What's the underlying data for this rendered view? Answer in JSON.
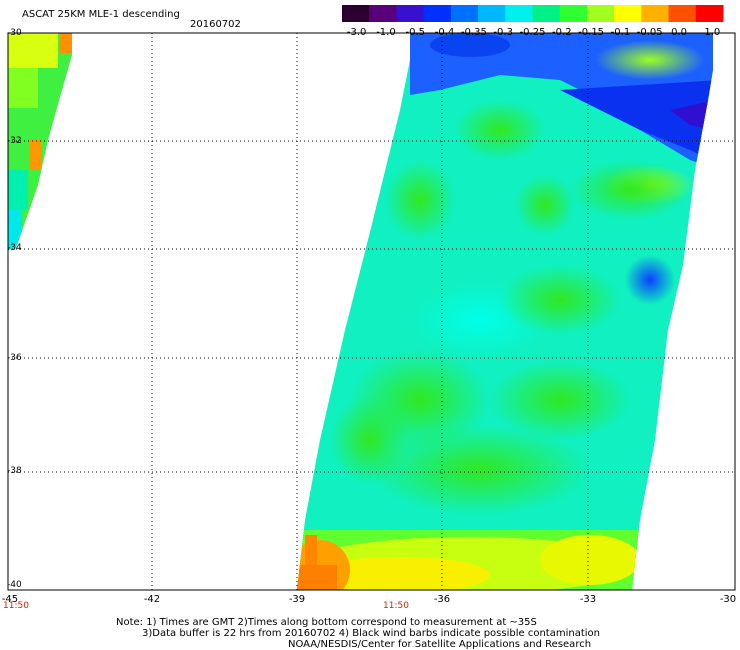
{
  "header": {
    "title": "ASCAT 25KM MLE-1 descending",
    "date": "20160702"
  },
  "colorbar": {
    "labels": [
      "-3.0",
      "-1.0",
      "-0.5",
      "-0.4",
      "-0.35",
      "-0.3",
      "-0.25",
      "-0.2",
      "-0.15",
      "-0.1",
      "-0.05",
      "0.0",
      "1.0"
    ],
    "colors": [
      "#2a0030",
      "#5a007a",
      "#3a10d0",
      "#0030ff",
      "#0070ff",
      "#00b8ff",
      "#00f0f0",
      "#00f088",
      "#30ff30",
      "#a0ff20",
      "#ffff00",
      "#ffb000",
      "#ff5000",
      "#ff0000"
    ]
  },
  "map": {
    "lat_labels": [
      "-30",
      "-32",
      "-34",
      "-36",
      "-38",
      "-40"
    ],
    "lon_labels": [
      "-45",
      "-42",
      "-39",
      "-36",
      "-33",
      "-30"
    ],
    "time_labels": [
      "11:50",
      "11:50"
    ]
  },
  "notes": {
    "line1": "Note: 1) Times are GMT 2)Times along bottom correspond to measurement at ~35S",
    "line2": "3)Data buffer is 22 hrs from 20160702 4) Black wind barbs indicate possible contamination",
    "line3": "NOAA/NESDIS/Center for Satellite Applications and Research"
  }
}
